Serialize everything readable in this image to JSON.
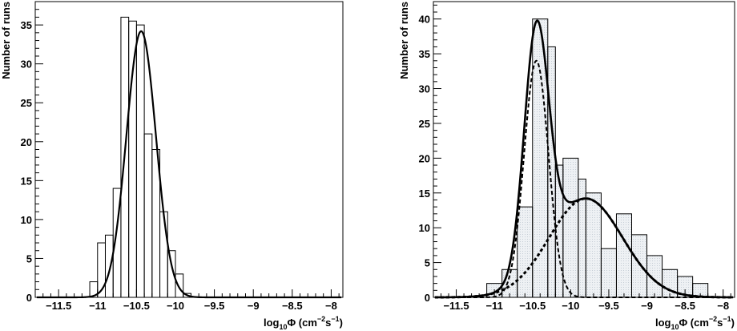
{
  "chart_data": [
    {
      "type": "histogram",
      "xlabel": {
        "prefix": "log",
        "sub": "10",
        "var": "Φ (cm",
        "exp1": "−2",
        "mid": "s",
        "exp2": "−1",
        "suffix": ")"
      },
      "ylabel": "Number of runs",
      "xlim": [
        -11.8,
        -7.85
      ],
      "ylim": [
        0,
        38
      ],
      "xticks": [
        -11.5,
        -11,
        -10.5,
        -10,
        -9.5,
        -9,
        -8.5,
        -8
      ],
      "xtick_labels": [
        "−11.5",
        "−11",
        "−10.5",
        "−10",
        "−9.5",
        "−9",
        "−8.5",
        "−8"
      ],
      "yticks": [
        0,
        5,
        10,
        15,
        20,
        25,
        30,
        35
      ],
      "ytick_labels": [
        "0",
        "5",
        "10",
        "15",
        "20",
        "25",
        "30",
        "35"
      ],
      "bins": {
        "edges": [
          -11.1,
          -11.0,
          -10.9,
          -10.8,
          -10.7,
          -10.6,
          -10.5,
          -10.4,
          -10.3,
          -10.2,
          -10.1,
          -10.0,
          -9.9,
          -9.8,
          -9.7
        ],
        "counts": [
          2,
          7,
          8,
          14,
          36,
          35.5,
          35,
          21,
          19,
          11,
          6,
          3,
          0.5,
          0
        ]
      },
      "fit": {
        "type": "gaussian",
        "amplitude": 34.2,
        "mean": -10.44,
        "sigma": 0.19,
        "style": "solid"
      }
    },
    {
      "type": "histogram",
      "xlabel": {
        "prefix": "log",
        "sub": "10",
        "var": "Φ (cm",
        "exp1": "−2",
        "mid": "s",
        "exp2": "−1",
        "suffix": ")"
      },
      "ylabel": "Number of runs",
      "xlim": [
        -11.8,
        -7.85
      ],
      "ylim": [
        0,
        42.5
      ],
      "xticks": [
        -11.5,
        -11,
        -10.5,
        -10,
        -9.5,
        -9,
        -8.5,
        -8
      ],
      "xtick_labels": [
        "−11.5",
        "−11",
        "−10.5",
        "−10",
        "−9.5",
        "−9",
        "−8.5",
        "−8"
      ],
      "yticks": [
        0,
        5,
        10,
        15,
        20,
        25,
        30,
        35,
        40
      ],
      "ytick_labels": [
        "0",
        "5",
        "10",
        "15",
        "20",
        "25",
        "30",
        "35",
        "40"
      ],
      "bins": {
        "edges": [
          -11.1,
          -10.9,
          -10.7,
          -10.5,
          -10.3,
          -10.2,
          -10.1,
          -9.9,
          -9.8,
          -9.6,
          -9.4,
          -9.2,
          -9.0,
          -8.8,
          -8.6,
          -8.4,
          -8.2
        ],
        "counts": [
          2,
          4,
          13,
          40,
          36,
          19,
          20,
          17,
          15,
          7,
          12,
          9,
          6,
          4,
          3,
          2
        ]
      },
      "fits": [
        {
          "type": "gaussian",
          "amplitude": 34,
          "mean": -10.45,
          "sigma": 0.16,
          "style": "dashed"
        },
        {
          "type": "gaussian",
          "amplitude": 14.2,
          "mean": -9.8,
          "sigma": 0.48,
          "style": "dotted-thick"
        },
        {
          "type": "sum",
          "style": "solid-thick"
        }
      ]
    }
  ]
}
